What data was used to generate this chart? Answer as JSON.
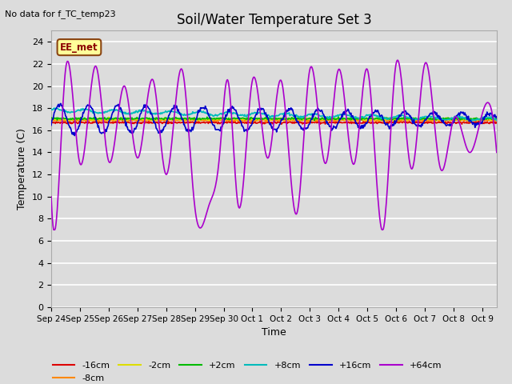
{
  "title": "Soil/Water Temperature Set 3",
  "no_data_text": "No data for f_TC_temp23",
  "xlabel": "Time",
  "ylabel": "Temperature (C)",
  "ylim": [
    0,
    25
  ],
  "yticks": [
    0,
    2,
    4,
    6,
    8,
    10,
    12,
    14,
    16,
    18,
    20,
    22,
    24
  ],
  "bg_color": "#dcdcdc",
  "plot_bg_color": "#dcdcdc",
  "grid_color": "#ffffff",
  "annotation_text": "EE_met",
  "annotation_box_color": "#ffff99",
  "annotation_box_edge": "#8b4513",
  "colors": {
    "-16cm": "#dd0000",
    "-8cm": "#ff8800",
    "-2cm": "#dddd00",
    "+2cm": "#00bb00",
    "+8cm": "#00bbbb",
    "+16cm": "#0000cc",
    "+64cm": "#aa00cc"
  },
  "xtick_labels": [
    "Sep 24",
    "Sep 25",
    "Sep 26",
    "Sep 27",
    "Sep 28",
    "Sep 29",
    "Sep 30",
    "Oct 1",
    "Oct 2",
    "Oct 3",
    "Oct 4",
    "Oct 5",
    "Oct 6",
    "Oct 7",
    "Oct 8",
    "Oct 9"
  ]
}
